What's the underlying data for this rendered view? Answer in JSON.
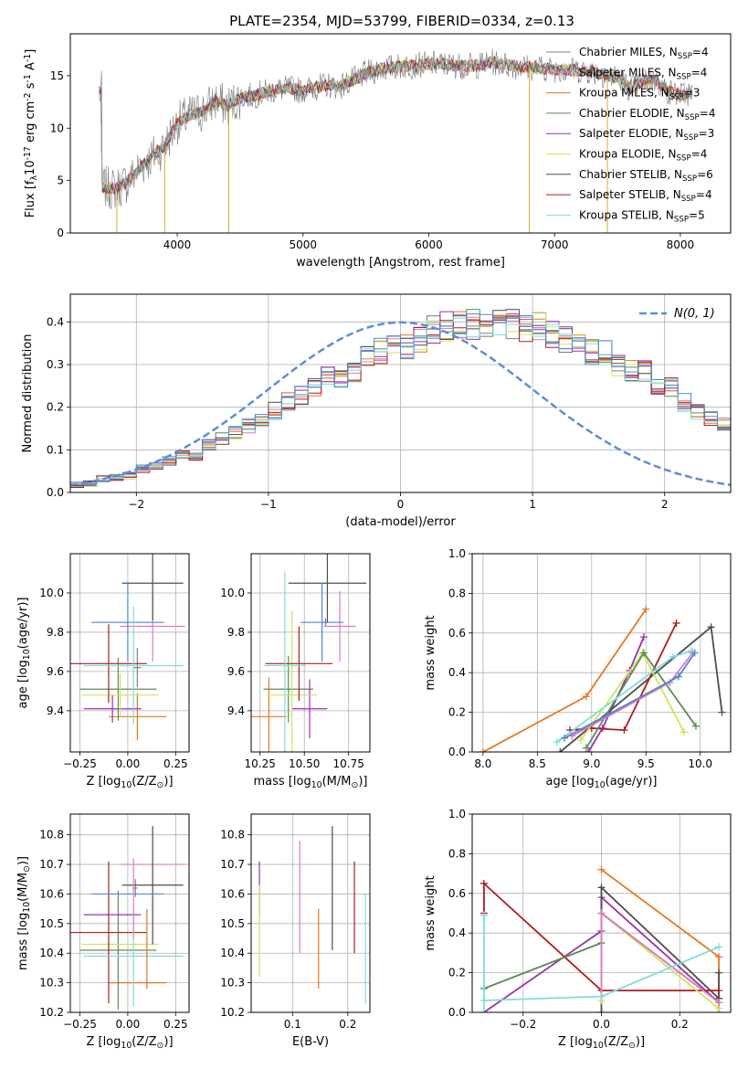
{
  "figure": {
    "title": "PLATE=2354, MJD=53799, FIBERID=0334, z=0.13"
  },
  "legend_entries": [
    {
      "name": "Chabrier MILES, N$_{SSP}$=4",
      "color": "#808080"
    },
    {
      "name": "Salpeter MILES, N$_{SSP}$=4",
      "color": "#e377c2"
    },
    {
      "name": "Kroupa MILES, N$_{SSP}$=3",
      "color": "#e8761e"
    },
    {
      "name": "Chabrier ELODIE, N$_{SSP}$=4",
      "color": "#5c8c55"
    },
    {
      "name": "Salpeter ELODIE, N$_{SSP}$=3",
      "color": "#9b2fb0"
    },
    {
      "name": "Kroupa ELODIE, N$_{SSP}$=4",
      "color": "#d2e35a"
    },
    {
      "name": "Chabrier STELIB, N$_{SSP}$=6",
      "color": "#4d4d4d"
    },
    {
      "name": "Salpeter STELIB, N$_{SSP}$=4",
      "color": "#b01c1c"
    },
    {
      "name": "Kroupa STELIB, N$_{SSP}$=5",
      "color": "#7fdcdc"
    }
  ],
  "chart_data": [
    {
      "id": "spectrum",
      "type": "line",
      "title": "PLATE=2354, MJD=53799, FIBERID=0334, z=0.13",
      "xlabel": "wavelength [Angstrom, rest frame]",
      "ylabel": "Flux [f$_\\lambda$10$^{-17}$ erg cm$^{-2}$ s$^{-1}$ A$^{-1}$]",
      "xlim": [
        3150,
        8400
      ],
      "ylim": [
        0,
        19
      ],
      "xticks": [
        4000,
        5000,
        6000,
        7000,
        8000
      ],
      "yticks": [
        0,
        5,
        10,
        15
      ],
      "legend": "upper right",
      "grid": false,
      "x": [
        3400,
        3500,
        3600,
        3700,
        3800,
        3900,
        4000,
        4100,
        4200,
        4300,
        4400,
        4500,
        4600,
        4700,
        4800,
        4900,
        5000,
        5100,
        5200,
        5300,
        5400,
        5500,
        5600,
        5700,
        5800,
        5900,
        6000,
        6100,
        6200,
        6300,
        6400,
        6500,
        6600,
        6700,
        6800,
        6900,
        7000,
        7100,
        7200,
        7300,
        7400,
        7500,
        7600,
        7700,
        7800,
        7900,
        8000,
        8100
      ],
      "model_flux": [
        4.4,
        4.2,
        4.8,
        6.2,
        7.3,
        8.3,
        10.5,
        11.2,
        11.6,
        12.6,
        12.1,
        12.9,
        13.1,
        13.4,
        13.7,
        13.8,
        13.6,
        13.9,
        14.1,
        14.0,
        14.6,
        15.2,
        15.6,
        15.8,
        15.9,
        16.0,
        16.1,
        16.1,
        16.0,
        15.9,
        16.0,
        16.3,
        16.1,
        15.9,
        15.8,
        15.7,
        15.6,
        15.6,
        15.5,
        15.4,
        15.1,
        14.8,
        13.8,
        14.4,
        14.6,
        13.5,
        13.2,
        13.4
      ],
      "spikes": [
        {
          "x": 3520,
          "y": 0
        },
        {
          "x": 3900,
          "y": 0
        },
        {
          "x": 4410,
          "y": 0
        },
        {
          "x": 6800,
          "y": 0
        },
        {
          "x": 7420,
          "y": 0
        }
      ],
      "series": [
        "Chabrier MILES, N$_{SSP}$=4",
        "Salpeter MILES, N$_{SSP}$=4",
        "Kroupa MILES, N$_{SSP}$=3",
        "Chabrier ELODIE, N$_{SSP}$=4",
        "Salpeter ELODIE, N$_{SSP}$=3",
        "Kroupa ELODIE, N$_{SSP}$=4",
        "Chabrier STELIB, N$_{SSP}$=6",
        "Salpeter STELIB, N$_{SSP}$=4",
        "Kroupa STELIB, N$_{SSP}$=5"
      ]
    },
    {
      "id": "residuals",
      "type": "histogram",
      "xlabel": "(data-model)/error",
      "ylabel": "Normed distribution",
      "xlim": [
        -2.5,
        2.5
      ],
      "ylim": [
        0,
        0.465
      ],
      "xticks": [
        -2,
        -1,
        0,
        1,
        2
      ],
      "yticks": [
        0.0,
        0.1,
        0.2,
        0.3,
        0.4
      ],
      "grid": true,
      "bin_width": 0.1,
      "bin_start": -2.5,
      "base_density": [
        0.018,
        0.021,
        0.028,
        0.033,
        0.04,
        0.047,
        0.056,
        0.063,
        0.075,
        0.085,
        0.099,
        0.112,
        0.126,
        0.141,
        0.157,
        0.173,
        0.192,
        0.212,
        0.229,
        0.248,
        0.269,
        0.285,
        0.301,
        0.316,
        0.331,
        0.345,
        0.358,
        0.369,
        0.38,
        0.389,
        0.394,
        0.397,
        0.398,
        0.397,
        0.394,
        0.389,
        0.38,
        0.369,
        0.358,
        0.345,
        0.331,
        0.316,
        0.301,
        0.285,
        0.269,
        0.248,
        0.229,
        0.212,
        0.192,
        0.173,
        0.157
      ],
      "legend_label": "$\\mathcal{N}(0,1)$",
      "legend": "upper right"
    },
    {
      "id": "age-vs-Z",
      "type": "errorbar",
      "xlabel": "Z [log$_{10}$(Z/Z$_\\odot$)]",
      "ylabel": "age  [log$_{10}$(age/yr)]",
      "xlim": [
        -0.3,
        0.32
      ],
      "ylim": [
        9.19,
        10.2
      ],
      "xticks": [
        -0.25,
        0.0,
        0.25
      ],
      "yticks": [
        9.4,
        9.6,
        9.8,
        10.0
      ],
      "grid": true,
      "points": [
        {
          "color": "#808080",
          "x": 0.05,
          "y": 9.62,
          "xerr": 0.02,
          "yerr": 0.1
        },
        {
          "color": "#e377c2",
          "x": 0.13,
          "y": 9.83,
          "xerr": 0.17,
          "yerr": 0.18
        },
        {
          "color": "#e8761e",
          "x": 0.05,
          "y": 9.37,
          "xerr": 0.15,
          "yerr": 0.12
        },
        {
          "color": "#5c8c55",
          "x": -0.05,
          "y": 9.51,
          "xerr": 0.2,
          "yerr": 0.16
        },
        {
          "color": "#9b2fb0",
          "x": -0.08,
          "y": 9.41,
          "xerr": 0.15,
          "yerr": 0.07
        },
        {
          "color": "#d2e35a",
          "x": -0.04,
          "y": 9.48,
          "xerr": 0.2,
          "yerr": 0.11
        },
        {
          "color": "#4d4d4d",
          "x": 0.13,
          "y": 10.05,
          "xerr": 0.16,
          "yerr": 0.19
        },
        {
          "color": "#b01c1c",
          "x": -0.1,
          "y": 9.64,
          "xerr": 0.2,
          "yerr": 0.2
        },
        {
          "color": "#4a8ad4",
          "x": 0.0,
          "y": 9.85,
          "xerr": 0.19,
          "yerr": 0.2
        },
        {
          "color": "#7fdcdc",
          "x": 0.03,
          "y": 9.63,
          "xerr": 0.26,
          "yerr": 0.3
        }
      ]
    },
    {
      "id": "age-vs-mass",
      "type": "errorbar",
      "xlabel": "mass [log$_{10}$(M/M$_\\odot$)]",
      "ylabel": "",
      "xlim": [
        10.2,
        10.87
      ],
      "ylim": [
        9.19,
        10.2
      ],
      "xticks": [
        10.25,
        10.5,
        10.75
      ],
      "yticks": [
        9.4,
        9.6,
        9.8,
        10.0
      ],
      "grid": true,
      "points": [
        {
          "color": "#808080",
          "x": 10.62,
          "y": 9.85,
          "xerr": 0.02,
          "yerr": 0.02
        },
        {
          "color": "#e377c2",
          "x": 10.7,
          "y": 9.83,
          "xerr": 0.09,
          "yerr": 0.18
        },
        {
          "color": "#e8761e",
          "x": 10.3,
          "y": 9.37,
          "xerr": 0.1,
          "yerr": 0.2
        },
        {
          "color": "#5c8c55",
          "x": 10.41,
          "y": 9.51,
          "xerr": 0.14,
          "yerr": 0.17
        },
        {
          "color": "#9b2fb0",
          "x": 10.53,
          "y": 9.41,
          "xerr": 0.1,
          "yerr": 0.15
        },
        {
          "color": "#d2e35a",
          "x": 10.43,
          "y": 9.48,
          "xerr": 0.14,
          "yerr": 0.43
        },
        {
          "color": "#4d4d4d",
          "x": 10.63,
          "y": 10.05,
          "xerr": 0.22,
          "yerr": 0.2
        },
        {
          "color": "#b01c1c",
          "x": 10.47,
          "y": 9.64,
          "xerr": 0.19,
          "yerr": 0.19
        },
        {
          "color": "#4a8ad4",
          "x": 10.6,
          "y": 9.85,
          "xerr": 0.12,
          "yerr": 0.2
        },
        {
          "color": "#7fdcdc",
          "x": 10.39,
          "y": 9.63,
          "xerr": 0.12,
          "yerr": 0.48
        }
      ]
    },
    {
      "id": "weight-vs-age",
      "type": "line",
      "xlabel": "age  [log$_{10}$(age/yr)]",
      "ylabel": "mass weight",
      "xlim": [
        7.9,
        10.28
      ],
      "ylim": [
        0,
        1.0
      ],
      "xticks": [
        8.0,
        8.5,
        9.0,
        9.5,
        10.0
      ],
      "yticks": [
        0.0,
        0.2,
        0.4,
        0.6,
        0.8,
        1.0
      ],
      "grid": true,
      "series": [
        {
          "color": "#e8761e",
          "x": [
            8.0,
            8.95,
            9.5
          ],
          "y": [
            0.0,
            0.28,
            0.72
          ]
        },
        {
          "color": "#9b2fb0",
          "x": [
            8.97,
            9.1,
            9.35,
            9.48
          ],
          "y": [
            0.0,
            0.12,
            0.41,
            0.58
          ]
        },
        {
          "color": "#4d4d4d",
          "x": [
            8.71,
            10.1,
            10.2
          ],
          "y": [
            0.0,
            0.63,
            0.2
          ]
        },
        {
          "color": "#b01c1c",
          "x": [
            8.8,
            9.0,
            9.3,
            9.78
          ],
          "y": [
            0.11,
            0.12,
            0.11,
            0.65
          ]
        },
        {
          "color": "#d2e35a",
          "x": [
            8.9,
            9.47,
            9.85
          ],
          "y": [
            0.06,
            0.5,
            0.1
          ]
        },
        {
          "color": "#5c8c55",
          "x": [
            8.95,
            9.48,
            9.96
          ],
          "y": [
            0.02,
            0.5,
            0.13
          ]
        },
        {
          "color": "#e377c2",
          "x": [
            8.82,
            9.72,
            9.93
          ],
          "y": [
            0.08,
            0.35,
            0.5
          ]
        },
        {
          "color": "#7fdcdc",
          "x": [
            8.68,
            9.75,
            9.92
          ],
          "y": [
            0.05,
            0.48,
            0.51
          ]
        },
        {
          "color": "#4a8ad4",
          "x": [
            8.75,
            9.8,
            9.95
          ],
          "y": [
            0.07,
            0.38,
            0.5
          ]
        }
      ]
    },
    {
      "id": "mass-vs-Z",
      "type": "errorbar",
      "xlabel": "Z [log$_{10}$(Z/Z$_\\odot$)]",
      "ylabel": "mass [log$_{10}$(M/M$_\\odot$)]",
      "xlim": [
        -0.3,
        0.32
      ],
      "ylim": [
        10.2,
        10.87
      ],
      "xticks": [
        -0.25,
        0.0,
        0.25
      ],
      "yticks": [
        10.2,
        10.3,
        10.4,
        10.5,
        10.6,
        10.7,
        10.8
      ],
      "grid": true,
      "points": [
        {
          "color": "#808080",
          "x": 0.04,
          "y": 10.62,
          "xerr": 0.01,
          "yerr": 0.03
        },
        {
          "color": "#e377c2",
          "x": 0.13,
          "y": 10.7,
          "xerr": 0.17,
          "yerr": 0.0
        },
        {
          "color": "#e8761e",
          "x": 0.05,
          "y": 10.3,
          "xerr": 0.15,
          "yerr": 0.0
        },
        {
          "color": "#5c8c55",
          "x": -0.05,
          "y": 10.41,
          "xerr": 0.2,
          "yerr": 0.2
        },
        {
          "color": "#9b2fb0",
          "x": -0.08,
          "y": 10.53,
          "xerr": 0.15,
          "yerr": 0.0
        },
        {
          "color": "#d2e35a",
          "x": -0.04,
          "y": 10.43,
          "xerr": 0.2,
          "yerr": 0.0
        },
        {
          "color": "#4d4d4d",
          "x": 0.13,
          "y": 10.63,
          "xerr": 0.16,
          "yerr": 0.2
        },
        {
          "color": "#b01c1c",
          "x": -0.1,
          "y": 10.47,
          "xerr": 0.2,
          "yerr": 0.24
        },
        {
          "color": "#4a8ad4",
          "x": 0.0,
          "y": 10.6,
          "xerr": 0.19,
          "yerr": 0.0
        },
        {
          "color": "#7fdcdc",
          "x": 0.03,
          "y": 10.39,
          "xerr": 0.26,
          "yerr": 0.17
        }
      ],
      "vbars": [
        {
          "color": "#e8761e",
          "x": 0.1,
          "y0": 10.28,
          "y1": 10.55
        },
        {
          "color": "#e377c2",
          "x": 0.03,
          "y0": 10.45,
          "y1": 10.72
        }
      ]
    },
    {
      "id": "mass-vs-ebv",
      "type": "errorbar",
      "xlabel": "E(B-V)",
      "ylabel": "",
      "xlim": [
        0.025,
        0.24
      ],
      "ylim": [
        10.2,
        10.87
      ],
      "xticks": [
        0.1,
        0.2
      ],
      "yticks": [
        10.2,
        10.3,
        10.4,
        10.5,
        10.6,
        10.7,
        10.8
      ],
      "grid": true,
      "vbars": [
        {
          "color": "#9b2fb0",
          "x": 0.04,
          "y0": 10.52,
          "y1": 10.71
        },
        {
          "color": "#d2e35a",
          "x": 0.04,
          "y0": 10.32,
          "y1": 10.63
        },
        {
          "color": "#e377c2",
          "x": 0.113,
          "y0": 10.4,
          "y1": 10.78
        },
        {
          "color": "#e8761e",
          "x": 0.147,
          "y0": 10.28,
          "y1": 10.55
        },
        {
          "color": "#4d4d4d",
          "x": 0.172,
          "y0": 10.41,
          "y1": 10.83
        },
        {
          "color": "#b01c1c",
          "x": 0.212,
          "y0": 10.4,
          "y1": 10.71
        },
        {
          "color": "#7fdcdc",
          "x": 0.232,
          "y0": 10.23,
          "y1": 10.6
        }
      ]
    },
    {
      "id": "weight-vs-Z",
      "type": "line",
      "xlabel": "Z [log$_{10}$(Z/Z$_\\odot$)]",
      "ylabel": "mass weight",
      "xlim": [
        -0.33,
        0.33
      ],
      "ylim": [
        0,
        1.0
      ],
      "xticks": [
        -0.2,
        0.0,
        0.2
      ],
      "yticks": [
        0.0,
        0.2,
        0.4,
        0.6,
        0.8,
        1.0
      ],
      "grid": true,
      "series": [
        {
          "color": "#e8761e",
          "x": [
            0.0,
            0.3,
            0.3
          ],
          "y": [
            0.72,
            0.28,
            0.0
          ]
        },
        {
          "color": "#9b2fb0",
          "x": [
            -0.3,
            0.0,
            0.0,
            0.3
          ],
          "y": [
            0.0,
            0.41,
            0.58,
            0.05
          ]
        },
        {
          "color": "#4d4d4d",
          "x": [
            0.0,
            0.0,
            0.3,
            0.3
          ],
          "y": [
            0.0,
            0.63,
            0.07,
            0.2
          ]
        },
        {
          "color": "#b01c1c",
          "x": [
            -0.3,
            -0.3,
            0.0,
            0.3
          ],
          "y": [
            0.5,
            0.65,
            0.11,
            0.11
          ]
        },
        {
          "color": "#d2e35a",
          "x": [
            0.0,
            0.0,
            0.3
          ],
          "y": [
            0.06,
            0.5,
            0.02
          ]
        },
        {
          "color": "#5c8c55",
          "x": [
            -0.3,
            0.0,
            0.0,
            0.3
          ],
          "y": [
            0.12,
            0.35,
            0.5,
            0.05
          ]
        },
        {
          "color": "#e377c2",
          "x": [
            0.0,
            0.0,
            0.3
          ],
          "y": [
            0.08,
            0.5,
            0.05
          ]
        },
        {
          "color": "#7fdcdc",
          "x": [
            -0.3,
            0.0,
            0.3
          ],
          "y": [
            0.06,
            0.08,
            0.33
          ]
        },
        {
          "color": "#7fdcdc",
          "x": [
            -0.3,
            -0.3
          ],
          "y": [
            0.0,
            0.49
          ]
        }
      ]
    }
  ]
}
